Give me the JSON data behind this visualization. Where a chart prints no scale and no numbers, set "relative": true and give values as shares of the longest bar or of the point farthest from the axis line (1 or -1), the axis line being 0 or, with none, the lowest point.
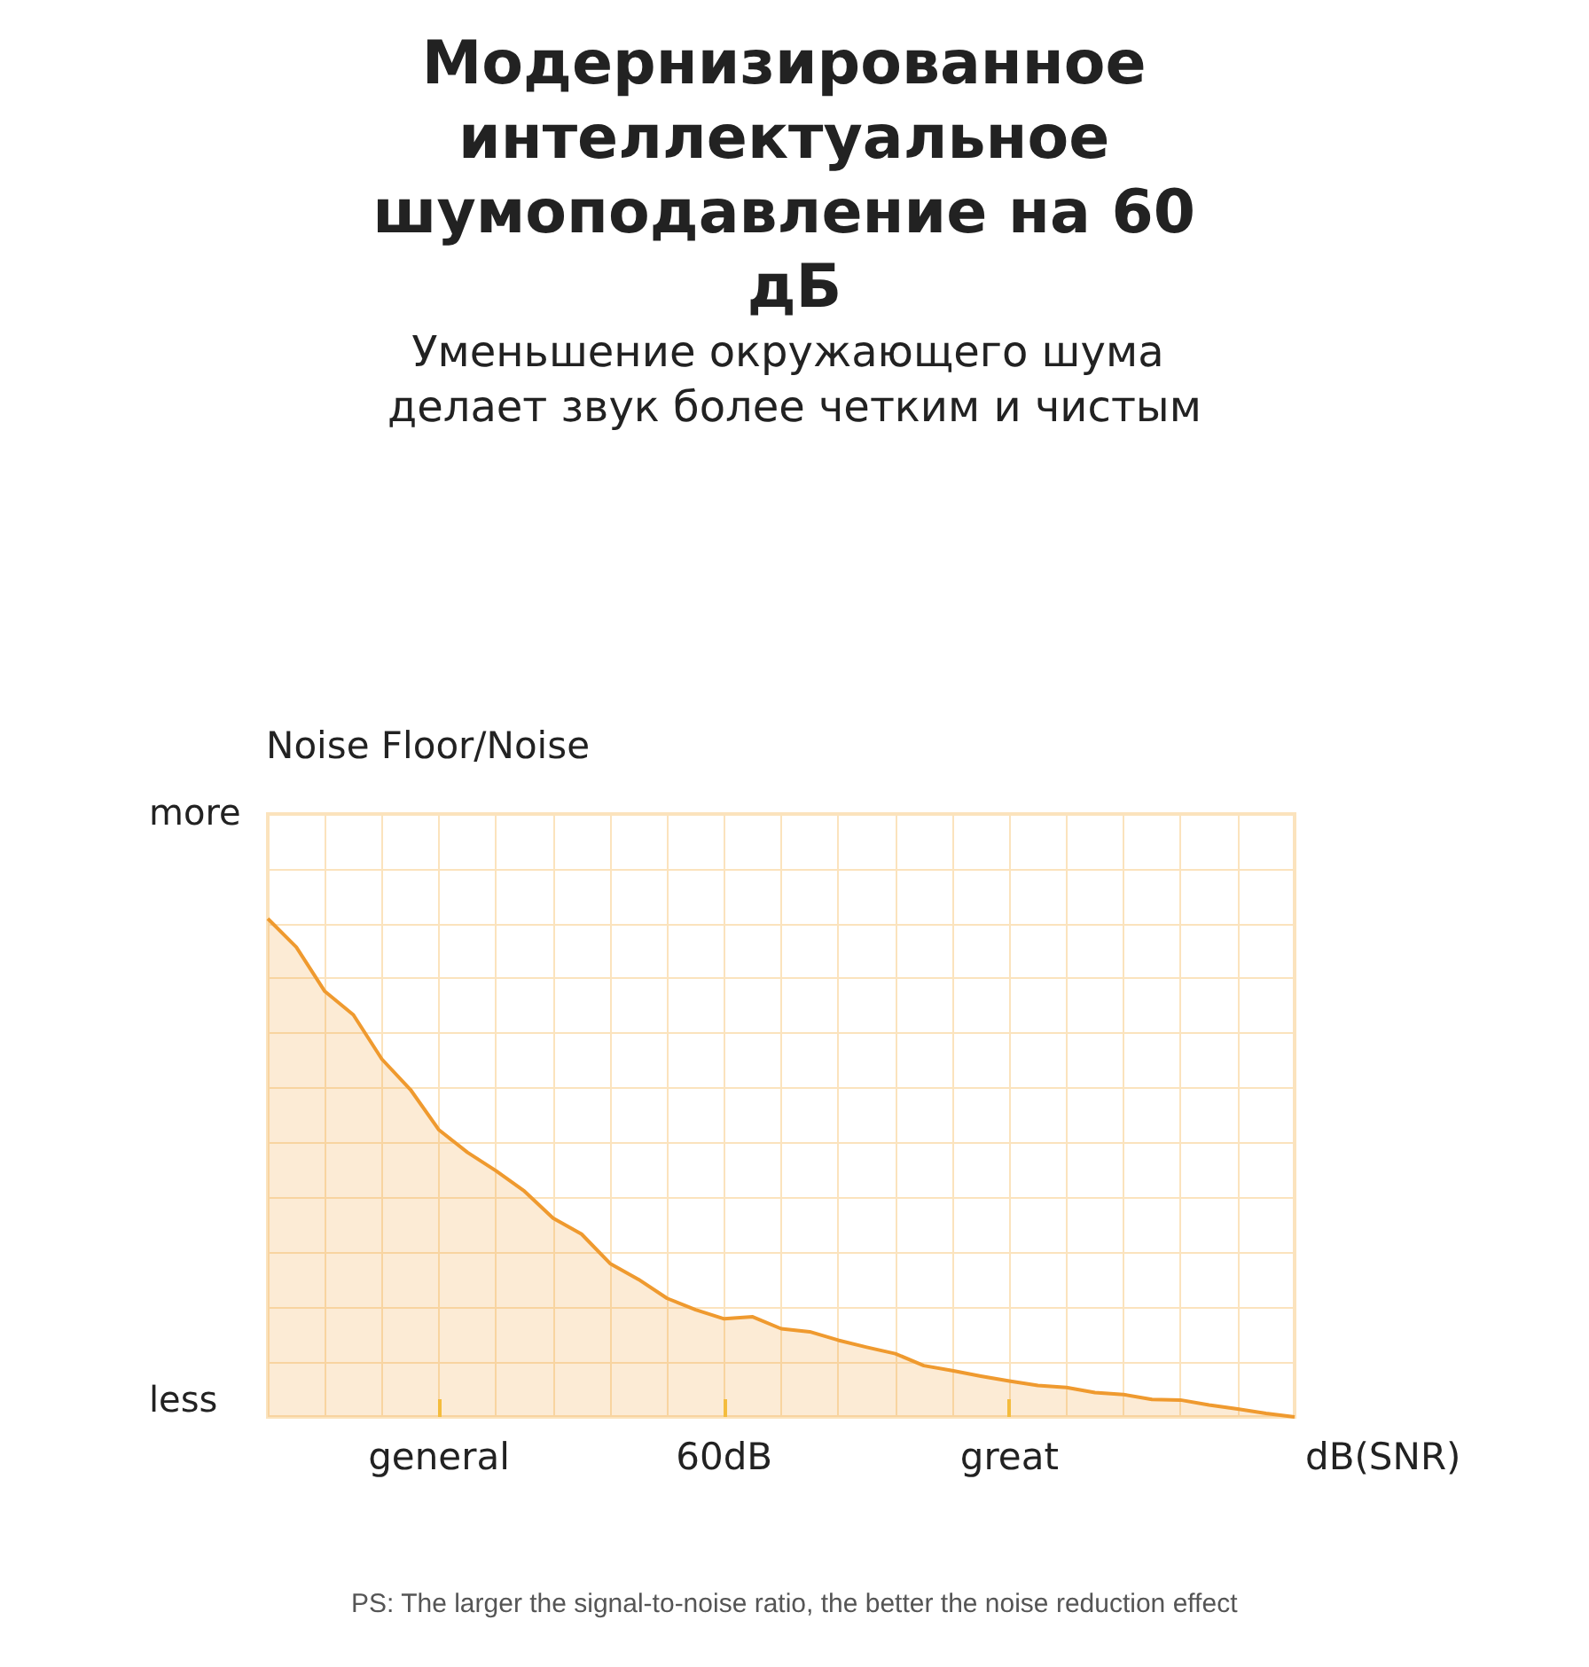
{
  "chart_data": {
    "type": "area",
    "title": "Модернизированное интеллектуальное шумоподавление на 60 дБ",
    "subtitle": "Уменьшение окружающего шума делает звук более четким и чистым",
    "ylabel": "Noise Floor/Noise",
    "xlabel": "dB(SNR)",
    "relative": true,
    "grid": true,
    "marker": "none",
    "line_style": "solid",
    "categories": [
      null,
      null,
      null,
      null,
      null,
      null,
      "general",
      null,
      null,
      null,
      null,
      null,
      null,
      null,
      null,
      null,
      "60dB",
      null,
      null,
      null,
      null,
      null,
      null,
      null,
      null,
      null,
      "great",
      null,
      null,
      null,
      null,
      null,
      null,
      null,
      null,
      null,
      null
    ],
    "series": [
      {
        "color": "#ef9a2f",
        "values": [
          1.0,
          0.943,
          0.854,
          0.807,
          0.718,
          0.657,
          0.576,
          0.531,
          0.494,
          0.453,
          0.399,
          0.367,
          0.308,
          0.276,
          0.238,
          0.215,
          0.197,
          0.201,
          0.177,
          0.171,
          0.154,
          0.14,
          0.127,
          0.103,
          0.093,
          0.082,
          0.072,
          0.063,
          0.059,
          0.049,
          0.045,
          0.035,
          0.034,
          0.024,
          0.016,
          0.007,
          0
        ]
      }
    ],
    "annotations": [
      "more",
      "less",
      "PS: The larger the signal-to-noise ratio, the better the noise reduction effect"
    ]
  }
}
